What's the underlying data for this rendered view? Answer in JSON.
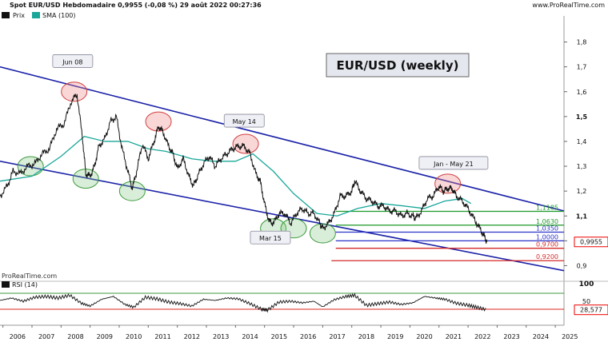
{
  "header": {
    "title": "Spot EUR/USD Hebdomadaire 0,9955 (-0,08 %) 29 août 2022 00:27:36",
    "site": "www.ProRealTime.com"
  },
  "legend": [
    {
      "label": "Prix",
      "color": "#000000"
    },
    {
      "label": "SMA (100)",
      "color": "#1aa79a"
    }
  ],
  "footer_watermark": "ProRealTime.com",
  "rsi_label": "RSI (14)",
  "colors": {
    "price": "#111111",
    "sma": "#1aa79a",
    "channel": "#1c23a8",
    "green_line": "#1e9a2a",
    "blue_line": "#2c34c8",
    "red_line": "#d52a2a",
    "rsi_upper": "#3c9a3c",
    "rsi_lower": "#d22",
    "red_circle": "#e88a8a",
    "green_circle": "#7ac27a"
  },
  "chart_data": {
    "type": "line",
    "title": "EUR/USD (weekly)",
    "xlabel": "",
    "ylabel": "",
    "x_ticks": [
      "2006",
      "2007",
      "2008",
      "2009",
      "2010",
      "2011",
      "2012",
      "2013",
      "2014",
      "2015",
      "2016",
      "2017",
      "2018",
      "2019",
      "2020",
      "2021",
      "2022",
      "2023",
      "2024",
      "2025"
    ],
    "y_ticks": [
      "1,8",
      "1,7",
      "1,6",
      "1,5",
      "1,4",
      "1,3",
      "1,2",
      "1,1",
      "1",
      "0,9"
    ],
    "ylim": [
      0.85,
      1.83
    ],
    "xlim": [
      2005.9,
      2025.3
    ],
    "price_series": {
      "name": "Prix",
      "x": [
        2005.9,
        2006.15,
        2006.35,
        2006.6,
        2006.85,
        2007.1,
        2007.35,
        2007.6,
        2007.85,
        2008.1,
        2008.35,
        2008.55,
        2008.75,
        2008.85,
        2009.0,
        2009.15,
        2009.3,
        2009.5,
        2009.7,
        2009.9,
        2010.1,
        2010.3,
        2010.45,
        2010.6,
        2010.8,
        2011.0,
        2011.2,
        2011.35,
        2011.5,
        2011.7,
        2011.85,
        2012.0,
        2012.2,
        2012.4,
        2012.55,
        2012.7,
        2012.9,
        2013.1,
        2013.3,
        2013.5,
        2013.7,
        2013.9,
        2014.1,
        2014.3,
        2014.5,
        2014.7,
        2014.85,
        2015.0,
        2015.15,
        2015.3,
        2015.5,
        2015.7,
        2015.9,
        2016.1,
        2016.3,
        2016.5,
        2016.7,
        2016.9,
        2017.0,
        2017.2,
        2017.4,
        2017.6,
        2017.8,
        2018.0,
        2018.1,
        2018.3,
        2018.5,
        2018.7,
        2018.9,
        2019.1,
        2019.3,
        2019.5,
        2019.7,
        2019.9,
        2020.1,
        2020.2,
        2020.4,
        2020.6,
        2020.8,
        2021.0,
        2021.15,
        2021.3,
        2021.45,
        2021.6,
        2021.8,
        2022.0,
        2022.2,
        2022.4,
        2022.55,
        2022.65
      ],
      "y": [
        1.18,
        1.22,
        1.28,
        1.27,
        1.3,
        1.31,
        1.35,
        1.37,
        1.45,
        1.47,
        1.56,
        1.59,
        1.4,
        1.27,
        1.26,
        1.3,
        1.38,
        1.41,
        1.48,
        1.5,
        1.37,
        1.28,
        1.21,
        1.28,
        1.39,
        1.33,
        1.4,
        1.46,
        1.44,
        1.38,
        1.35,
        1.29,
        1.33,
        1.26,
        1.22,
        1.26,
        1.31,
        1.34,
        1.3,
        1.33,
        1.35,
        1.37,
        1.38,
        1.38,
        1.35,
        1.27,
        1.24,
        1.15,
        1.08,
        1.07,
        1.11,
        1.11,
        1.07,
        1.11,
        1.13,
        1.11,
        1.11,
        1.07,
        1.05,
        1.07,
        1.11,
        1.18,
        1.18,
        1.2,
        1.24,
        1.2,
        1.17,
        1.16,
        1.14,
        1.14,
        1.12,
        1.12,
        1.1,
        1.11,
        1.1,
        1.09,
        1.12,
        1.17,
        1.18,
        1.22,
        1.2,
        1.21,
        1.21,
        1.18,
        1.16,
        1.13,
        1.09,
        1.05,
        1.02,
        0.9955
      ]
    },
    "sma_series": {
      "name": "SMA (100)",
      "x": [
        2005.9,
        2007.0,
        2008.0,
        2008.8,
        2009.5,
        2010.3,
        2011.0,
        2011.6,
        2012.5,
        2013.2,
        2014.0,
        2014.6,
        2015.3,
        2016.0,
        2016.8,
        2017.5,
        2018.2,
        2019.0,
        2019.8,
        2020.5,
        2021.2,
        2021.8,
        2022.1
      ],
      "y": [
        1.24,
        1.26,
        1.34,
        1.42,
        1.4,
        1.4,
        1.37,
        1.36,
        1.33,
        1.32,
        1.32,
        1.35,
        1.28,
        1.19,
        1.11,
        1.1,
        1.13,
        1.15,
        1.14,
        1.13,
        1.16,
        1.17,
        1.15
      ]
    },
    "channel_lines": [
      {
        "x1": 2005.9,
        "y1": 1.7,
        "x2": 2025.3,
        "y2": 1.12
      },
      {
        "x1": 2005.9,
        "y1": 1.32,
        "x2": 2025.3,
        "y2": 0.88
      }
    ],
    "level_lines": [
      {
        "value": 1.1185,
        "label": "1,1185",
        "color": "green",
        "x_start": 2017.45
      },
      {
        "value": 1.063,
        "label": "1,0630",
        "color": "green",
        "x_start": 2017.45
      },
      {
        "value": 1.035,
        "label": "1,0350",
        "color": "blue",
        "x_start": 2017.45
      },
      {
        "value": 1.0,
        "label": "1,0000",
        "color": "blue",
        "x_start": 2017.45
      },
      {
        "value": 0.97,
        "label": "0,9700",
        "color": "red",
        "x_start": 2017.45
      },
      {
        "value": 0.92,
        "label": "0,9200",
        "color": "red",
        "x_start": 2017.3
      }
    ],
    "annotations": [
      {
        "text": "Jun 08",
        "x": 2008.4,
        "y": 1.72
      },
      {
        "text": "May 14",
        "x": 2014.3,
        "y": 1.48
      },
      {
        "text": "Jan - May 21",
        "x": 2021.5,
        "y": 1.31
      },
      {
        "text": "Mar 15",
        "x": 2015.2,
        "y": 1.01
      }
    ],
    "highlight_circles": [
      {
        "x": 2008.45,
        "y": 1.6,
        "type": "top"
      },
      {
        "x": 2011.35,
        "y": 1.48,
        "type": "top"
      },
      {
        "x": 2014.35,
        "y": 1.39,
        "type": "top"
      },
      {
        "x": 2021.3,
        "y": 1.23,
        "type": "top"
      },
      {
        "x": 2006.95,
        "y": 1.3,
        "type": "bottom"
      },
      {
        "x": 2008.85,
        "y": 1.25,
        "type": "bottom"
      },
      {
        "x": 2010.45,
        "y": 1.2,
        "type": "bottom"
      },
      {
        "x": 2015.3,
        "y": 1.05,
        "type": "bottom"
      },
      {
        "x": 2016.0,
        "y": 1.05,
        "type": "bottom"
      },
      {
        "x": 2017.0,
        "y": 1.03,
        "type": "bottom"
      }
    ],
    "current_value": "0,9955",
    "rsi": {
      "name": "RSI (14)",
      "y_ticks": [
        "100",
        "50"
      ],
      "upper_level": 70,
      "lower_level": 30,
      "current_value": "28,577",
      "x": [
        2005.9,
        2006.3,
        2006.7,
        2007.1,
        2007.5,
        2007.9,
        2008.3,
        2008.7,
        2009.0,
        2009.4,
        2009.8,
        2010.2,
        2010.5,
        2010.9,
        2011.3,
        2011.7,
        2012.1,
        2012.5,
        2012.9,
        2013.3,
        2013.7,
        2014.1,
        2014.5,
        2014.9,
        2015.1,
        2015.5,
        2015.9,
        2016.3,
        2016.7,
        2017.0,
        2017.4,
        2017.8,
        2018.1,
        2018.5,
        2018.9,
        2019.3,
        2019.7,
        2020.1,
        2020.5,
        2020.9,
        2021.2,
        2021.6,
        2022.0,
        2022.3,
        2022.65
      ],
      "y": [
        52,
        58,
        50,
        60,
        62,
        58,
        65,
        45,
        38,
        55,
        62,
        42,
        35,
        60,
        56,
        48,
        44,
        38,
        55,
        52,
        58,
        56,
        44,
        30,
        28,
        48,
        50,
        46,
        50,
        36,
        54,
        62,
        65,
        40,
        44,
        48,
        42,
        46,
        62,
        58,
        55,
        45,
        40,
        35,
        28.6
      ]
    }
  }
}
